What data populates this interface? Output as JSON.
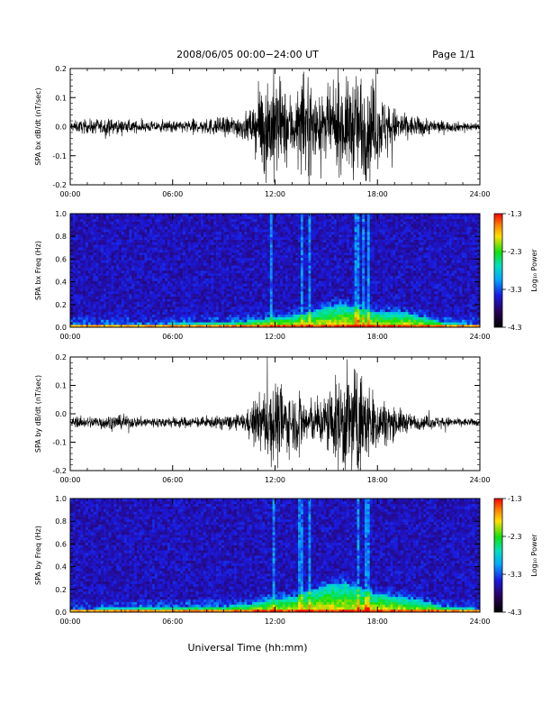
{
  "header": {
    "title": "2008/06/05  00:00−24:00 UT",
    "page": "Page 1/1"
  },
  "footer": {
    "xlabel": "Universal Time (hh:mm)"
  },
  "colors": {
    "trace": "#000000",
    "axes": "#000000",
    "background": "#ffffff"
  },
  "chart_data": [
    {
      "type": "line",
      "ylabel": "SPA bx dB/dt (nT/sec)",
      "xlim": [
        0,
        24
      ],
      "ylim": [
        -0.2,
        0.2
      ],
      "x_ticks": [
        "00:00",
        "06:00",
        "12:00",
        "18:00",
        "24:00"
      ],
      "y_ticks": [
        "-0.2",
        "-0.1",
        "0.0",
        "0.1",
        "0.2"
      ],
      "y_tick_values": [
        -0.2,
        -0.1,
        0.0,
        0.1,
        0.2
      ],
      "grid": false,
      "series": [
        {
          "x": [
            0,
            2,
            4,
            6,
            8,
            9,
            10,
            10.5,
            11,
            11.5,
            12,
            12.5,
            13,
            13.5,
            14,
            14.5,
            15,
            15.5,
            16,
            16.5,
            17,
            17.5,
            18,
            18.5,
            19,
            20,
            22,
            24
          ],
          "envelope": [
            0.02,
            0.03,
            0.02,
            0.02,
            0.03,
            0.035,
            0.045,
            0.06,
            0.12,
            0.2,
            0.2,
            0.14,
            0.12,
            0.14,
            0.2,
            0.1,
            0.12,
            0.14,
            0.16,
            0.18,
            0.2,
            0.2,
            0.14,
            0.1,
            0.07,
            0.04,
            0.02,
            0.015
          ]
        }
      ]
    },
    {
      "type": "heatmap",
      "ylabel": "SPA bx Freq (Hz)",
      "colorbar_label": "Log₁₀ Power",
      "xlim": [
        0,
        24
      ],
      "ylim": [
        0,
        1.0
      ],
      "x_ticks": [
        "00:00",
        "06:00",
        "12:00",
        "18:00",
        "24:00"
      ],
      "y_ticks": [
        "0.0",
        "0.2",
        "0.4",
        "0.6",
        "0.8",
        "1.0"
      ],
      "y_tick_values": [
        0,
        0.2,
        0.4,
        0.6,
        0.8,
        1.0
      ],
      "colorbar_ticks": [
        "-4.3",
        "-3.3",
        "-2.3",
        "-1.3"
      ],
      "colorbar_values": [
        -4.3,
        -3.3,
        -2.3,
        -1.3
      ],
      "activity": {
        "x": [
          0,
          4,
          8,
          10,
          11,
          12,
          13,
          14,
          15,
          16,
          17,
          18,
          19,
          20,
          22,
          24
        ],
        "top_freq": [
          0.03,
          0.03,
          0.04,
          0.05,
          0.07,
          0.09,
          0.1,
          0.13,
          0.18,
          0.2,
          0.16,
          0.14,
          0.14,
          0.12,
          0.04,
          0.03
        ]
      },
      "vertical_streaks_hours": [
        11.8,
        13.6,
        14.0,
        16.8,
        17.2,
        17.5
      ]
    },
    {
      "type": "line",
      "ylabel": "SPA by dB/dt (nT/sec)",
      "xlim": [
        0,
        24
      ],
      "ylim": [
        -0.2,
        0.2
      ],
      "x_ticks": [
        "00:00",
        "06:00",
        "12:00",
        "18:00",
        "24:00"
      ],
      "y_ticks": [
        "-0.2",
        "-0.1",
        "0.0",
        "0.1",
        "0.2"
      ],
      "y_tick_values": [
        -0.2,
        -0.1,
        0.0,
        0.1,
        0.2
      ],
      "grid": false,
      "series": [
        {
          "x": [
            0,
            2,
            4,
            6,
            8,
            9,
            10,
            10.5,
            11,
            11.5,
            12,
            12.5,
            13,
            13.5,
            14,
            14.5,
            15,
            15.5,
            16,
            16.5,
            17,
            17.5,
            18,
            18.5,
            19,
            20,
            22,
            24
          ],
          "envelope": [
            0.015,
            0.03,
            0.02,
            0.02,
            0.02,
            0.025,
            0.03,
            0.05,
            0.1,
            0.14,
            0.17,
            0.13,
            0.1,
            0.12,
            0.08,
            0.08,
            0.12,
            0.15,
            0.2,
            0.2,
            0.2,
            0.14,
            0.1,
            0.08,
            0.06,
            0.03,
            0.02,
            0.012
          ],
          "offset": -0.03
        }
      ]
    },
    {
      "type": "heatmap",
      "ylabel": "SPA by Freq (Hz)",
      "colorbar_label": "Log₁₀ Power",
      "xlim": [
        0,
        24
      ],
      "ylim": [
        0,
        1.0
      ],
      "x_ticks": [
        "00:00",
        "06:00",
        "12:00",
        "18:00",
        "24:00"
      ],
      "y_ticks": [
        "0.0",
        "0.2",
        "0.4",
        "0.6",
        "0.8",
        "1.0"
      ],
      "y_tick_values": [
        0,
        0.2,
        0.4,
        0.6,
        0.8,
        1.0
      ],
      "colorbar_ticks": [
        "-4.3",
        "-3.3",
        "-2.3",
        "-1.3"
      ],
      "colorbar_values": [
        -4.3,
        -3.3,
        -2.3,
        -1.3
      ],
      "activity": {
        "x": [
          0,
          4,
          8,
          10,
          11,
          12,
          13,
          14,
          15,
          16,
          17,
          18,
          19,
          20,
          22,
          24
        ],
        "top_freq": [
          0.03,
          0.04,
          0.05,
          0.06,
          0.09,
          0.12,
          0.13,
          0.18,
          0.24,
          0.26,
          0.2,
          0.16,
          0.14,
          0.12,
          0.05,
          0.03
        ]
      },
      "vertical_streaks_hours": [
        11.9,
        13.5,
        14.0,
        16.9,
        17.3,
        17.5
      ]
    }
  ]
}
